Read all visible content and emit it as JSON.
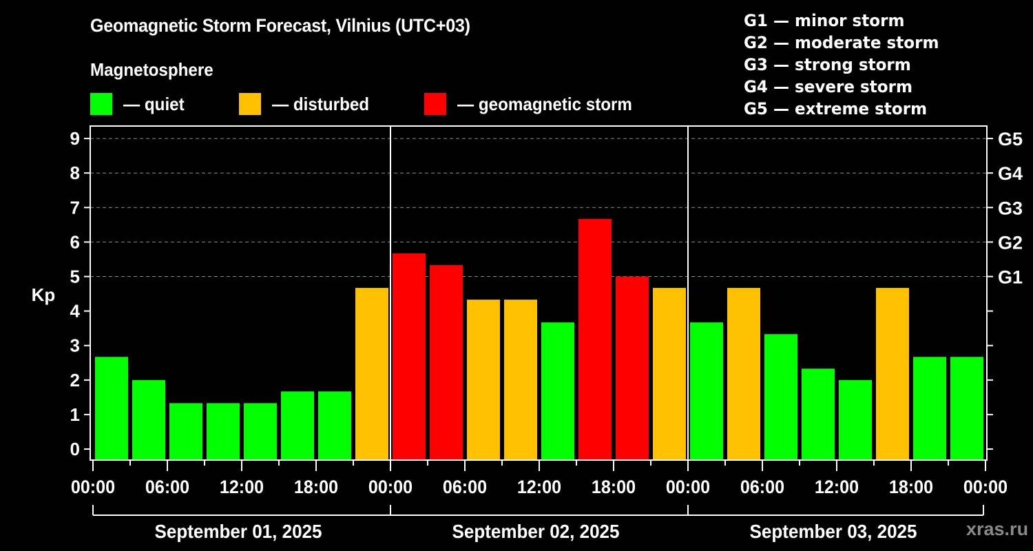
{
  "header": {
    "title": "Geomagnetic Storm Forecast, Vilnius (UTC+03)",
    "subtitle": "Magnetosphere"
  },
  "legend": {
    "items": [
      {
        "label": "— quiet",
        "color": "#00ff00"
      },
      {
        "label": "— disturbed",
        "color": "#ffc000"
      },
      {
        "label": "— geomagnetic storm",
        "color": "#ff0000"
      }
    ]
  },
  "g_scale": {
    "items": [
      "G1 — minor storm",
      "G2 — moderate storm",
      "G3 — strong storm",
      "G4 — severe storm",
      "G5 — extreme storm"
    ]
  },
  "watermark": "xras.ru",
  "colors": {
    "quiet": "#00ff00",
    "disturbed": "#ffc000",
    "storm": "#ff0000",
    "background": "#000000",
    "axis": "#ffffff",
    "grid": "#8c8c8c"
  },
  "chart_data": {
    "type": "bar",
    "title": "Geomagnetic Storm Forecast, Vilnius (UTC+03)",
    "xlabel": "",
    "ylabel": "Kp",
    "ylim": [
      -0.3,
      9.4
    ],
    "yticks": [
      0,
      1,
      2,
      3,
      4,
      5,
      6,
      7,
      8,
      9
    ],
    "right_axis_labels": [
      {
        "kp": 5,
        "label": "G1"
      },
      {
        "kp": 6,
        "label": "G2"
      },
      {
        "kp": 7,
        "label": "G3"
      },
      {
        "kp": 8,
        "label": "G4"
      },
      {
        "kp": 9,
        "label": "G5"
      }
    ],
    "grid": "dashed horizontal lines at Kp 5-9",
    "x_tick_labels": [
      "00:00",
      "06:00",
      "12:00",
      "18:00",
      "00:00",
      "06:00",
      "12:00",
      "18:00",
      "00:00",
      "06:00",
      "12:00",
      "18:00",
      "00:00"
    ],
    "days": [
      "September 01, 2025",
      "September 02, 2025",
      "September 03, 2025"
    ],
    "categories": [
      "09-01 00-03",
      "09-01 03-06",
      "09-01 06-09",
      "09-01 09-12",
      "09-01 12-15",
      "09-01 15-18",
      "09-01 18-21",
      "09-01 21-24",
      "09-02 00-03",
      "09-02 03-06",
      "09-02 06-09",
      "09-02 09-12",
      "09-02 12-15",
      "09-02 15-18",
      "09-02 18-21",
      "09-02 21-24",
      "09-03 00-03",
      "09-03 03-06",
      "09-03 06-09",
      "09-03 09-12",
      "09-03 12-15",
      "09-03 15-18",
      "09-03 18-21",
      "09-03 21-24"
    ],
    "values": [
      2.67,
      2.0,
      1.33,
      1.33,
      1.33,
      1.67,
      1.67,
      4.67,
      5.67,
      5.33,
      4.33,
      4.33,
      3.67,
      6.67,
      5.0,
      4.67,
      3.67,
      4.67,
      3.33,
      2.33,
      2.0,
      4.67,
      2.67,
      2.67
    ],
    "status": [
      "quiet",
      "quiet",
      "quiet",
      "quiet",
      "quiet",
      "quiet",
      "quiet",
      "disturbed",
      "storm",
      "storm",
      "disturbed",
      "disturbed",
      "quiet",
      "storm",
      "storm",
      "disturbed",
      "quiet",
      "disturbed",
      "quiet",
      "quiet",
      "quiet",
      "disturbed",
      "quiet",
      "quiet"
    ],
    "legend_position": "top"
  }
}
